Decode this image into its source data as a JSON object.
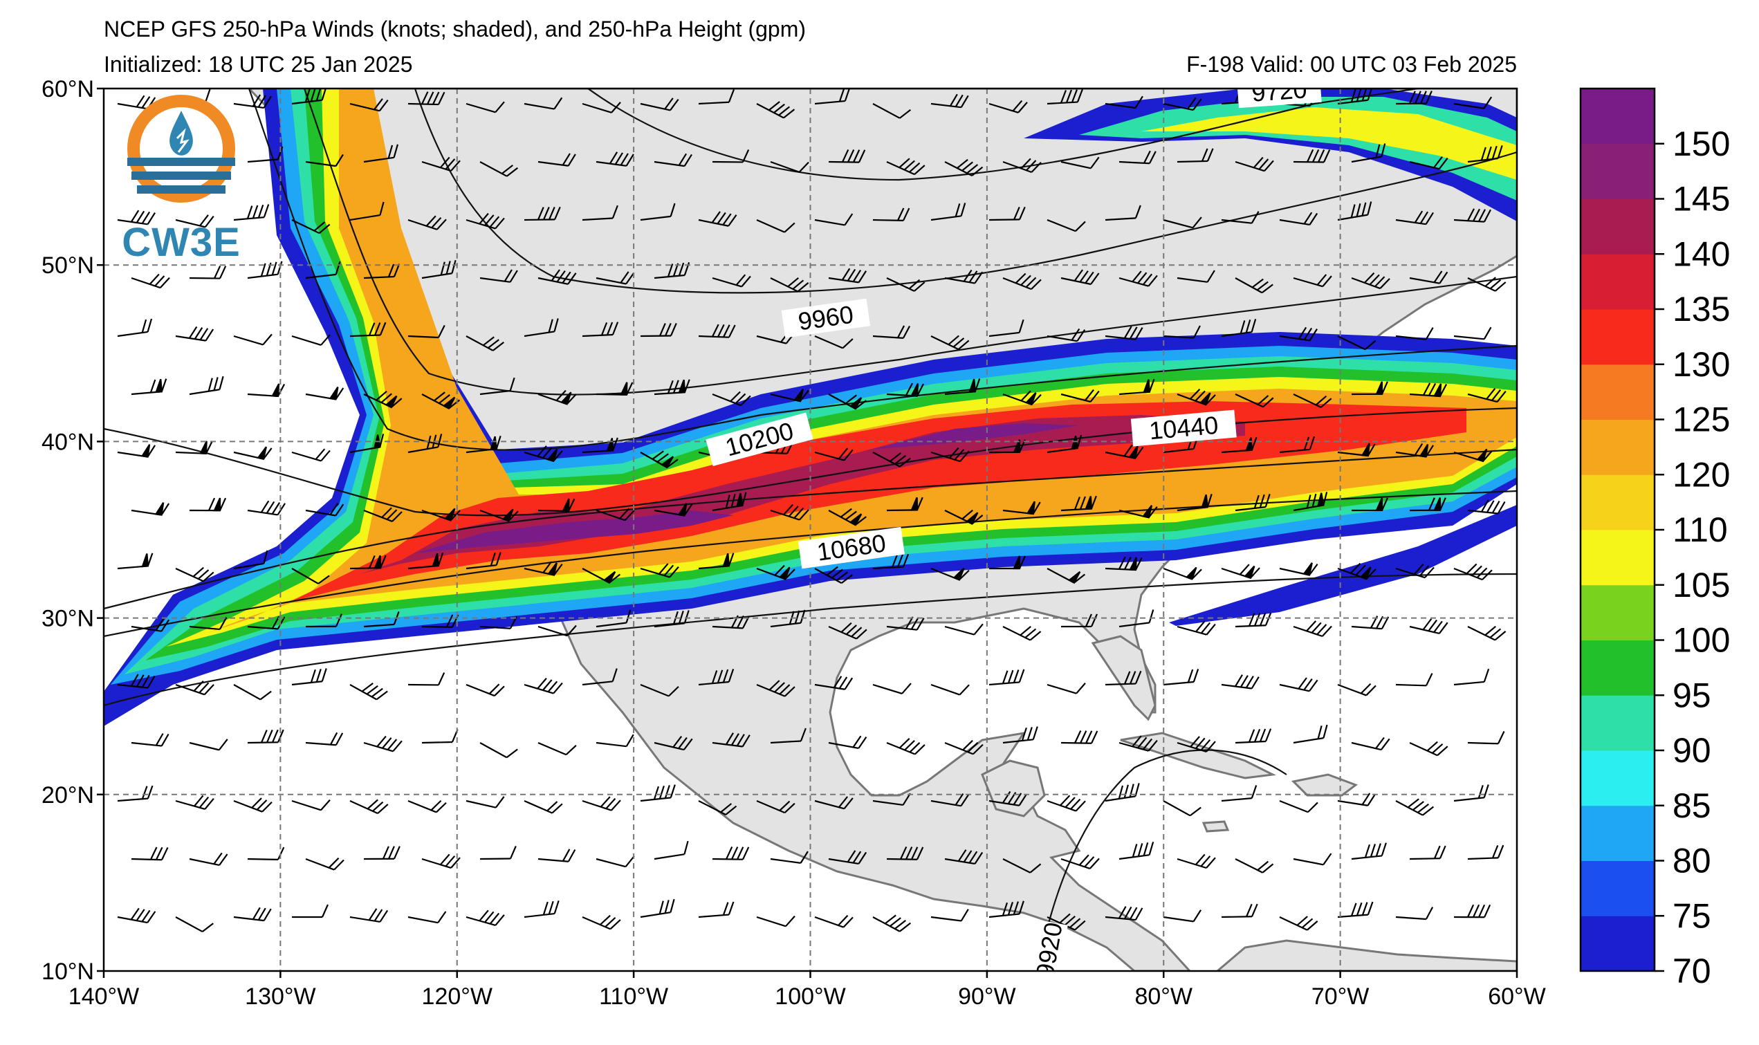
{
  "header": {
    "title": "NCEP GFS 250-hPa Winds (knots; shaded), and 250-hPa Height (gpm)",
    "initialized": "Initialized: 18 UTC 25 Jan 2025",
    "valid": "F-198  Valid: 00 UTC 03 Feb 2025"
  },
  "logo": {
    "text": "CW3E",
    "colors": {
      "ring": "#f08a24",
      "band": "#2a6f9a",
      "text": "#2f86b3"
    }
  },
  "map": {
    "lon_range": [
      -140,
      -60
    ],
    "lat_range": [
      10,
      60
    ],
    "lon_labels": [
      "140°W",
      "130°W",
      "120°W",
      "110°W",
      "100°W",
      "90°W",
      "80°W",
      "70°W",
      "60°W"
    ],
    "lat_labels": [
      "60°N",
      "50°N",
      "40°N",
      "30°N",
      "20°N",
      "10°N"
    ],
    "grid": "dashed",
    "land_color": "#e3e3e3",
    "ocean_color": "#ffffff"
  },
  "contour_labels": [
    "9720",
    "9960",
    "10200",
    "10440",
    "10680",
    "9920"
  ],
  "colorbar": {
    "levels": [
      70,
      75,
      80,
      85,
      90,
      95,
      100,
      105,
      110,
      120,
      125,
      130,
      135,
      140,
      145,
      150,
      155
    ],
    "tick_labels": [
      "70",
      "75",
      "80",
      "85",
      "90",
      "95",
      "100",
      "105",
      "110",
      "120",
      "125",
      "130",
      "135",
      "140",
      "145",
      "150"
    ],
    "colors": [
      "#1c1fcf",
      "#1c4ff0",
      "#1fa6f5",
      "#2beef0",
      "#2ee0a8",
      "#22c02a",
      "#78d21e",
      "#f5f51a",
      "#f7d21a",
      "#f5a61c",
      "#f57a22",
      "#f82a1c",
      "#d81e32",
      "#a81c52",
      "#8a1f78",
      "#7a1c88"
    ]
  }
}
